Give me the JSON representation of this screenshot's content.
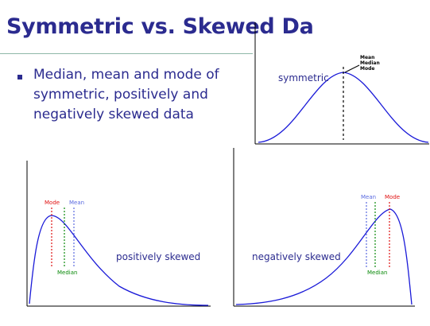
{
  "slide": {
    "title": "Symmetric vs. Skewed Da",
    "bullet": "Median, mean and mode of symmetric, positively and negatively skewed data"
  },
  "colors": {
    "curve": "#1a1ad8",
    "mode": "#e01010",
    "median": "#0a8a0a",
    "mean": "#5a6ae0",
    "title": "#2b2b8f"
  },
  "charts": {
    "symmetric": {
      "label": "symmetric",
      "markers": [
        "Mean",
        "Median",
        "Mode"
      ]
    },
    "positive": {
      "label": "positively skewed",
      "mode": "Mode",
      "mean": "Mean",
      "median": "Median"
    },
    "negative": {
      "label": "negatively skewed",
      "mean": "Mean",
      "mode": "Mode",
      "median": "Median"
    }
  }
}
